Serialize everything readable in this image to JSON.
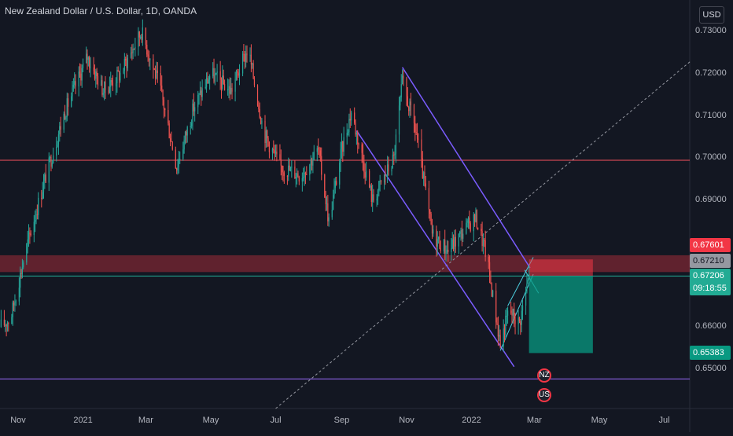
{
  "header": {
    "title": "New Zealand Dollar / U.S. Dollar, 1D, OANDA",
    "currency": "USD"
  },
  "price_labels": {
    "target_top": "0.67601",
    "entry": "0.67210",
    "last_price": "0.67206",
    "countdown": "09:18:55",
    "stop": "0.65383"
  },
  "colors": {
    "background": "#131722",
    "up": "#26a69a",
    "down": "#ef5350",
    "resistance": "#f23645",
    "channel": "#7b5cff",
    "teal_line": "#22ab94",
    "target_zone": "#f2364566",
    "profit_zone": "#089981"
  },
  "events": [
    {
      "name": "nz-flag-icon",
      "label": "NZ"
    },
    {
      "name": "us-flag-icon",
      "label": "US"
    }
  ],
  "chart_data": {
    "type": "candlestick",
    "title": "New Zealand Dollar / U.S. Dollar, 1D, OANDA",
    "ylim": [
      0.645,
      0.735
    ],
    "ytick_labels": [
      "0.73000",
      "0.72000",
      "0.71000",
      "0.70000",
      "0.69000",
      "0.66000",
      "0.65000"
    ],
    "yticks": [
      0.73,
      0.72,
      0.71,
      0.7,
      0.69,
      0.66,
      0.65
    ],
    "xtick_labels": [
      "Nov",
      "2021",
      "Mar",
      "May",
      "Jul",
      "Sep",
      "Nov",
      "2022",
      "Mar",
      "May",
      "Jul"
    ],
    "x_range": [
      "2020-10-15",
      "2022-07-25"
    ],
    "xticks": [
      "2020-11-01",
      "2021-01-01",
      "2021-03-01",
      "2021-05-01",
      "2021-07-01",
      "2021-09-01",
      "2021-11-01",
      "2022-01-01",
      "2022-03-01",
      "2022-05-01",
      "2022-07-01"
    ],
    "close_path": [
      [
        "2020-10-15",
        0.66
      ],
      [
        "2020-10-25",
        0.662
      ],
      [
        "2020-11-08",
        0.678
      ],
      [
        "2020-11-25",
        0.694
      ],
      [
        "2020-12-15",
        0.711
      ],
      [
        "2021-01-05",
        0.724
      ],
      [
        "2021-01-20",
        0.716
      ],
      [
        "2021-02-05",
        0.72
      ],
      [
        "2021-02-25",
        0.73
      ],
      [
        "2021-03-15",
        0.716
      ],
      [
        "2021-03-30",
        0.698
      ],
      [
        "2021-04-15",
        0.712
      ],
      [
        "2021-05-01",
        0.72
      ],
      [
        "2021-05-20",
        0.716
      ],
      [
        "2021-06-05",
        0.726
      ],
      [
        "2021-06-20",
        0.706
      ],
      [
        "2021-07-05",
        0.698
      ],
      [
        "2021-07-25",
        0.696
      ],
      [
        "2021-08-10",
        0.702
      ],
      [
        "2021-08-20",
        0.685
      ],
      [
        "2021-09-01",
        0.702
      ],
      [
        "2021-09-10",
        0.711
      ],
      [
        "2021-09-30",
        0.69
      ],
      [
        "2021-10-20",
        0.7
      ],
      [
        "2021-10-28",
        0.718
      ],
      [
        "2021-11-10",
        0.706
      ],
      [
        "2021-11-25",
        0.682
      ],
      [
        "2021-12-10",
        0.678
      ],
      [
        "2021-12-25",
        0.683
      ],
      [
        "2022-01-05",
        0.686
      ],
      [
        "2022-01-15",
        0.677
      ],
      [
        "2022-01-28",
        0.656
      ],
      [
        "2022-02-05",
        0.664
      ],
      [
        "2022-02-15",
        0.661
      ],
      [
        "2022-02-24",
        0.672
      ]
    ],
    "horizontal_lines": [
      {
        "value": 0.6995,
        "label": "resistance"
      },
      {
        "value": 0.6477,
        "label": "support"
      }
    ],
    "zones": [
      {
        "from": 0.6745,
        "to": 0.6755,
        "label": "resistance-zone"
      }
    ],
    "position": {
      "entry": 0.6721,
      "target_top": 0.67601,
      "stop": 0.65383,
      "start": "2022-02-24",
      "end": "2022-04-25"
    },
    "current_price": 0.67206
  }
}
